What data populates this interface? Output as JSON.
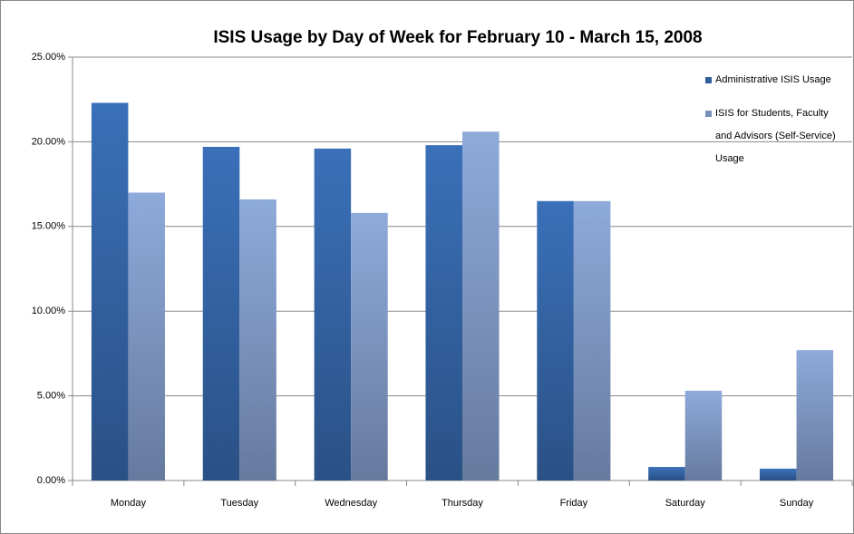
{
  "chart_data": {
    "type": "bar",
    "title": "ISIS Usage by Day of Week for February 10 - March 15, 2008",
    "categories": [
      "Monday",
      "Tuesday",
      "Wednesday",
      "Thursday",
      "Friday",
      "Saturday",
      "Sunday"
    ],
    "series": [
      {
        "name": "Administrative ISIS Usage",
        "color": "#3a70b9",
        "values": [
          22.3,
          19.7,
          19.6,
          19.8,
          16.5,
          0.8,
          0.7
        ]
      },
      {
        "name": "ISIS for Students, Faculty and Advisors (Self-Service) Usage",
        "color": "#8eaadb",
        "values": [
          17.0,
          16.6,
          15.8,
          20.6,
          16.5,
          5.3,
          7.7
        ]
      }
    ],
    "ylim": [
      0,
      25
    ],
    "yticks": [
      {
        "value": 0,
        "label": "0.00%"
      },
      {
        "value": 5,
        "label": "5.00%"
      },
      {
        "value": 10,
        "label": "10.00%"
      },
      {
        "value": 15,
        "label": "15.00%"
      },
      {
        "value": 20,
        "label": "20.00%"
      },
      {
        "value": 25,
        "label": "25.00%"
      }
    ],
    "grid": true,
    "legend": "top-right"
  }
}
